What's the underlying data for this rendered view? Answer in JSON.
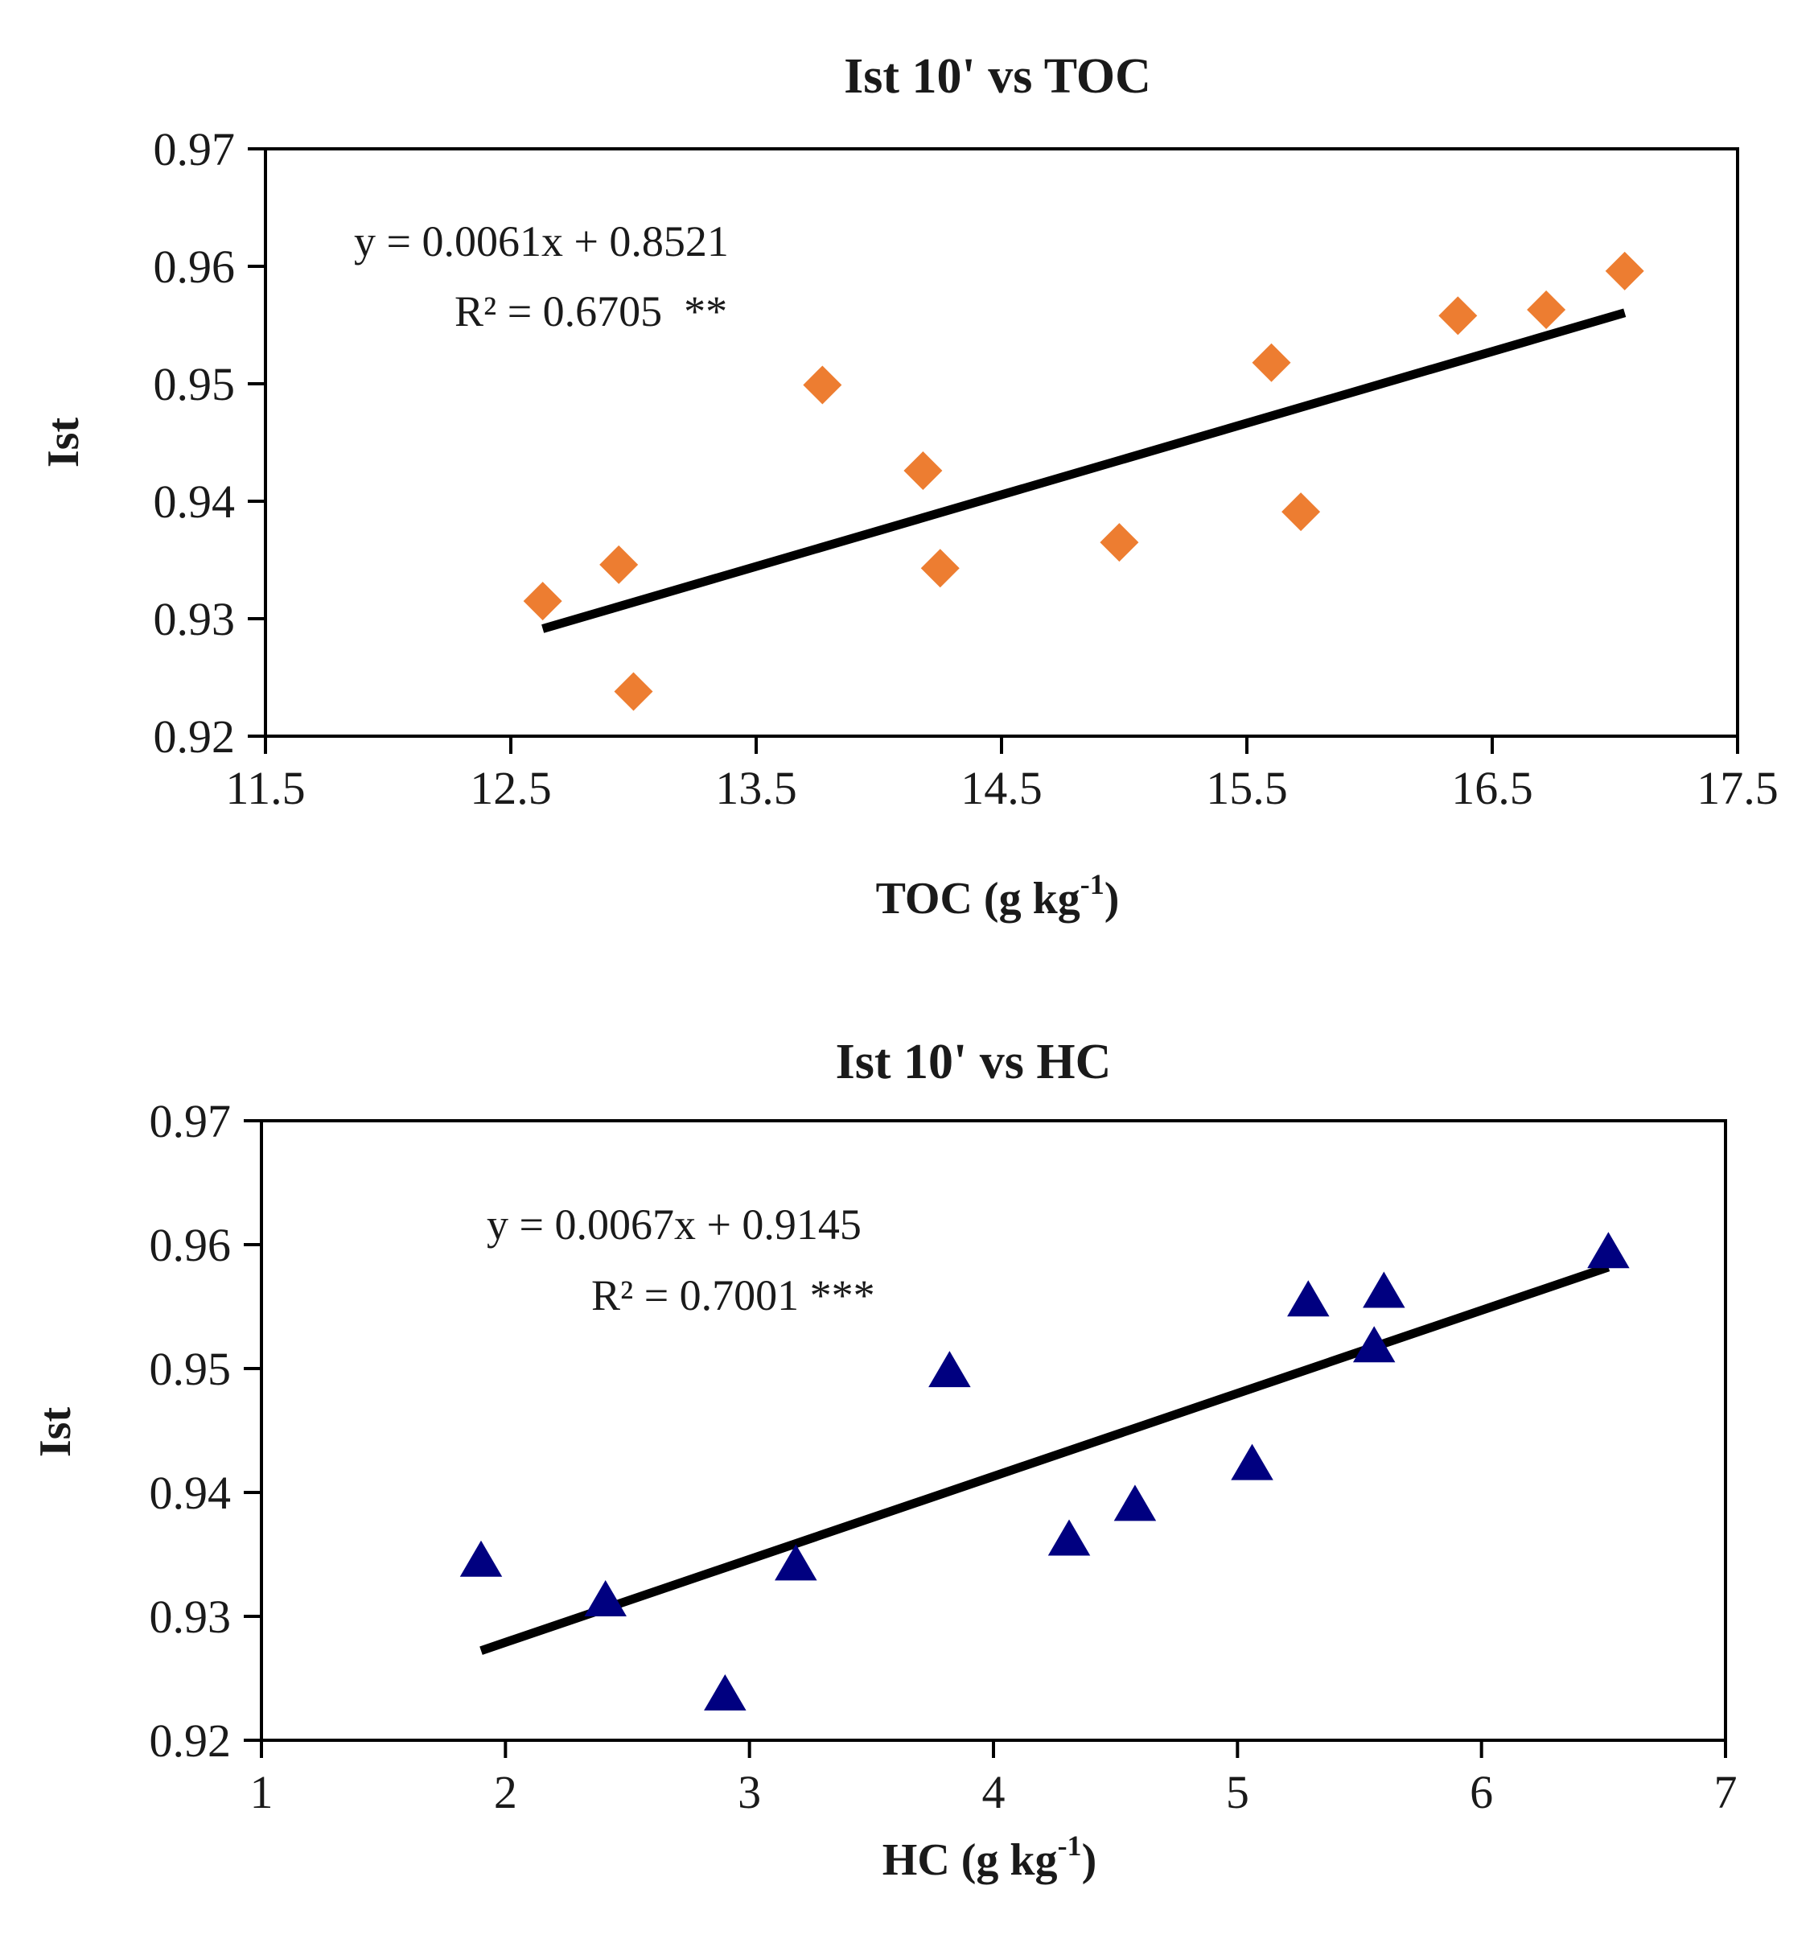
{
  "chart_data": [
    {
      "type": "scatter",
      "title": "Ist 10' vs TOC",
      "xlabel": "TOC (g kg",
      "xlabel_sup": "-1",
      "xlabel_end": ")",
      "ylabel": "Ist",
      "xlim": [
        11.5,
        17.5
      ],
      "ylim": [
        0.92,
        0.97
      ],
      "xticks": [
        11.5,
        12.5,
        13.5,
        14.5,
        15.5,
        16.5,
        17.5
      ],
      "xtick_labels": [
        "11.5",
        "12.5",
        "13.5",
        "14.5",
        "15.5",
        "16.5",
        "17.5"
      ],
      "yticks": [
        0.92,
        0.93,
        0.94,
        0.95,
        0.96,
        0.97
      ],
      "ytick_labels": [
        "0.92",
        "0.93",
        "0.94",
        "0.95",
        "0.96",
        "0.97"
      ],
      "marker": "diamond",
      "marker_color": "#ED7D31",
      "series": [
        {
          "name": "Ist",
          "x": [
            12.63,
            12.94,
            13.0,
            13.77,
            14.18,
            14.25,
            14.98,
            15.6,
            15.72,
            16.36,
            16.72,
            17.04
          ],
          "y": [
            0.9315,
            0.9346,
            0.9238,
            0.9499,
            0.9426,
            0.9343,
            0.9365,
            0.9518,
            0.9391,
            0.9558,
            0.9563,
            0.9596
          ]
        }
      ],
      "trendline": {
        "slope": 0.0061,
        "intercept": 0.8521,
        "x_range": [
          12.63,
          17.04
        ],
        "color": "#000000"
      },
      "equation": "y = 0.0061x + 0.8521",
      "r2": "R² = 0.6705  **",
      "grid": false
    },
    {
      "type": "scatter",
      "title": "Ist 10' vs HC",
      "xlabel": "HC (g kg",
      "xlabel_sup": "-1",
      "xlabel_end": ")",
      "ylabel": "Ist",
      "xlim": [
        1,
        7
      ],
      "ylim": [
        0.92,
        0.97
      ],
      "xticks": [
        1,
        2,
        3,
        4,
        5,
        6,
        7
      ],
      "xtick_labels": [
        "1",
        "2",
        "3",
        "4",
        "5",
        "6",
        "7"
      ],
      "yticks": [
        0.92,
        0.93,
        0.94,
        0.95,
        0.96,
        0.97
      ],
      "ytick_labels": [
        "0.92",
        "0.93",
        "0.94",
        "0.95",
        "0.96",
        "0.97"
      ],
      "marker": "triangle",
      "marker_color": "#000080",
      "series": [
        {
          "name": "Ist",
          "x": [
            1.9,
            2.41,
            2.9,
            3.19,
            3.82,
            4.31,
            4.58,
            5.06,
            5.29,
            5.56,
            5.6,
            6.52
          ],
          "y": [
            0.9345,
            0.9313,
            0.9237,
            0.9342,
            0.9498,
            0.9362,
            0.939,
            0.9423,
            0.9555,
            0.9518,
            0.9562,
            0.9594
          ]
        }
      ],
      "trendline": {
        "slope": 0.0067,
        "intercept": 0.9145,
        "x_range": [
          1.9,
          6.52
        ],
        "color": "#000000"
      },
      "equation": "y = 0.0067x + 0.9145",
      "r2": "R² = 0.7001 ***",
      "grid": false
    }
  ]
}
